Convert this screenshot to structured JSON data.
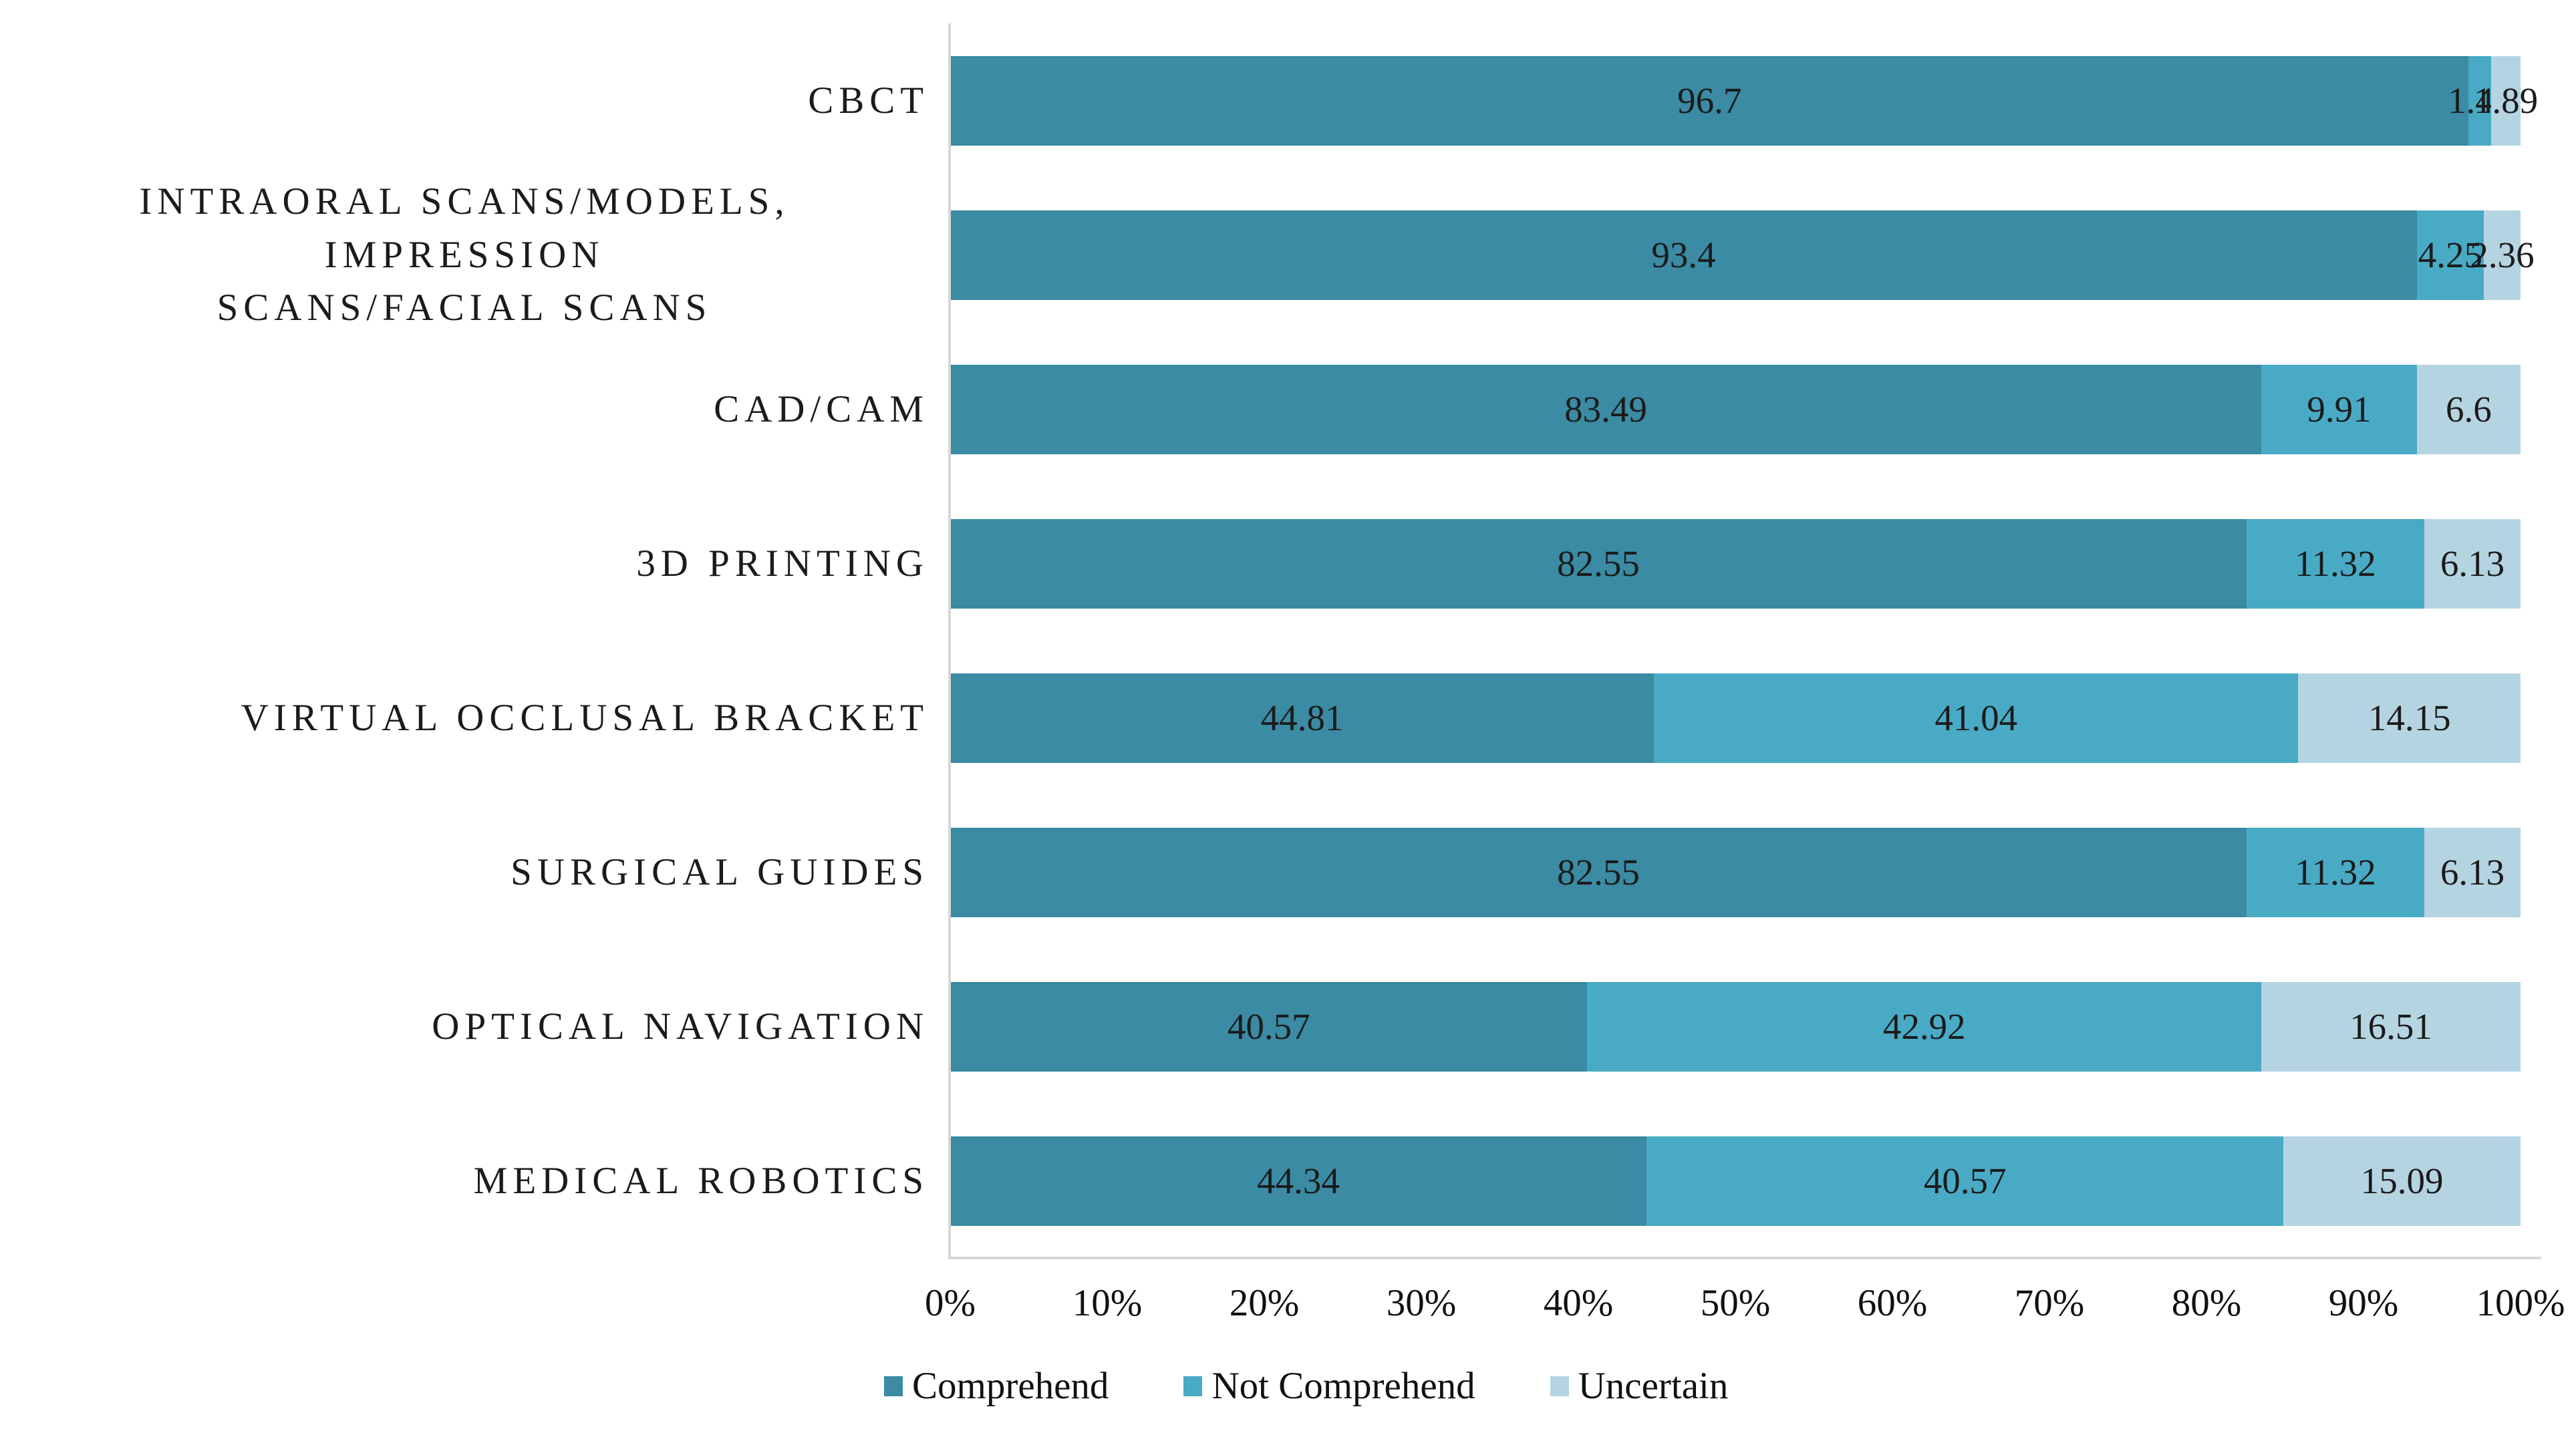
{
  "chart_data": {
    "type": "bar",
    "orientation": "horizontal",
    "stacked": true,
    "title": "",
    "xlabel": "",
    "ylabel": "",
    "xlim": [
      0,
      100
    ],
    "grid": false,
    "legend_position": "bottom",
    "categories": [
      "CBCT",
      "INTRAORAL SCANS/MODELS, IMPRESSION\nSCANS/FACIAL SCANS",
      "CAD/CAM",
      "3D PRINTING",
      "VIRTUAL OCCLUSAL BRACKET",
      "SURGICAL GUIDES",
      "OPTICAL NAVIGATION",
      "MEDICAL ROBOTICS"
    ],
    "series": [
      {
        "name": "Comprehend",
        "color": "#3A8BA3",
        "values": [
          96.7,
          93.4,
          83.49,
          82.55,
          44.81,
          82.55,
          40.57,
          44.34
        ],
        "labels": [
          "96.7",
          "93.4",
          "83.49",
          "82.55",
          "44.81",
          "82.55",
          "40.57",
          "44.34"
        ]
      },
      {
        "name": "Not Comprehend",
        "color": "#49AAC5",
        "values": [
          1.42,
          4.25,
          9.91,
          11.32,
          41.04,
          11.32,
          42.92,
          40.57
        ],
        "labels": [
          "1.42",
          "4.25",
          "9.91",
          "11.32",
          "41.04",
          "11.32",
          "42.92",
          "40.57"
        ]
      },
      {
        "name": "Uncertain",
        "color": "#B5D4E1",
        "values": [
          1.89,
          2.36,
          6.6,
          6.13,
          14.15,
          6.13,
          16.51,
          15.09
        ],
        "labels": [
          "1.89",
          "2.36",
          "6.6",
          "6.13",
          "14.15",
          "6.13",
          "16.51",
          "15.09"
        ]
      }
    ],
    "x_axis_ticks": [
      "0%",
      "10%",
      "20%",
      "30%",
      "40%",
      "50%",
      "60%",
      "70%",
      "80%",
      "90%",
      "100%"
    ],
    "axis_line_color": "#d6d6d6"
  }
}
